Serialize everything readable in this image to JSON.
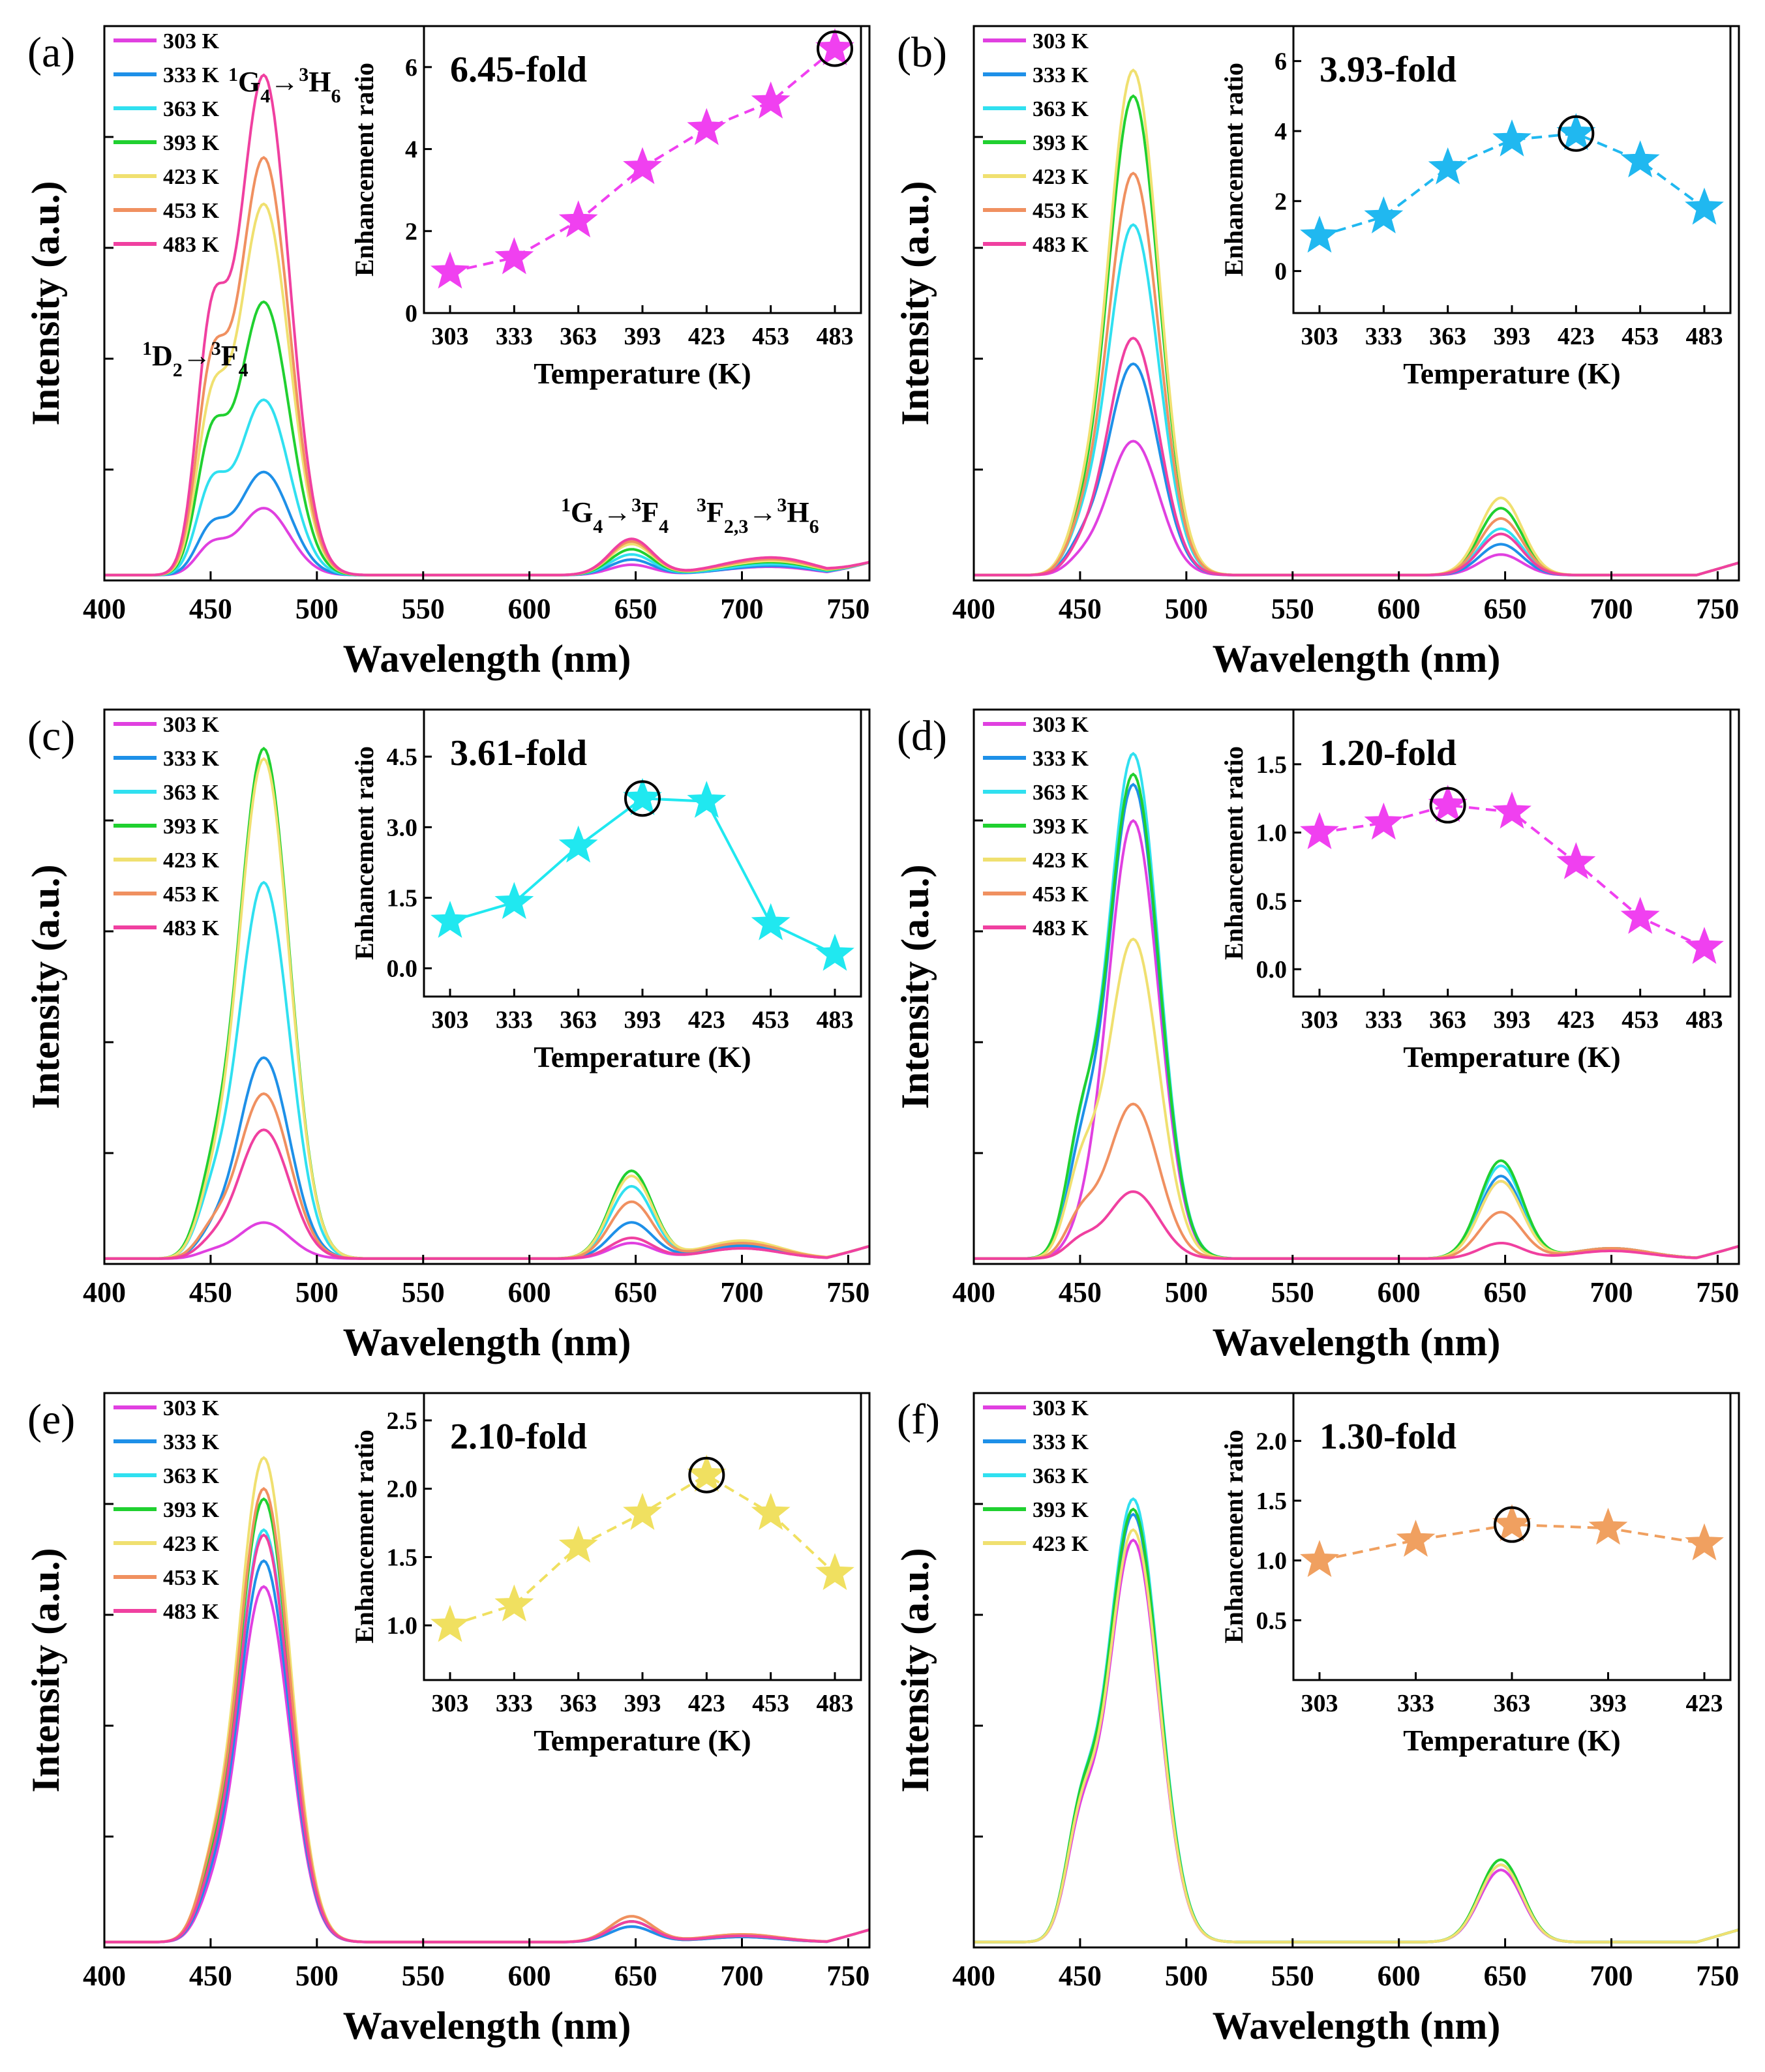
{
  "figure": {
    "x_axis_label": "Wavelength (nm)",
    "y_axis_label": "Intensity (a.u.)",
    "inset_x_label": "Temperature (K)",
    "inset_y_label": "Enhancement ratio"
  },
  "colors": {
    "303 K": "#e040e0",
    "333 K": "#1e90e8",
    "363 K": "#30e0f0",
    "393 K": "#20d030",
    "423 K": "#f0e070",
    "453 K": "#f09060",
    "483 K": "#f040a0"
  },
  "chart_data": [
    {
      "type": "line",
      "panel": "(a)",
      "xlabel": "Wavelength (nm)",
      "ylabel": "Intensity (a.u.)",
      "xlim": [
        400,
        760
      ],
      "xticks": [
        400,
        450,
        500,
        550,
        600,
        650,
        700,
        750
      ],
      "series_names": [
        "303 K",
        "333 K",
        "363 K",
        "393 K",
        "423 K",
        "453 K",
        "483 K"
      ],
      "peaks": {
        "450": [
          0.05,
          0.08,
          0.15,
          0.23,
          0.28,
          0.34,
          0.42
        ],
        "475": [
          0.13,
          0.2,
          0.34,
          0.53,
          0.72,
          0.81,
          0.97
        ],
        "648": [
          0.02,
          0.03,
          0.04,
          0.05,
          0.06,
          0.065,
          0.07
        ],
        "700": [
          0.01,
          0.01,
          0.012,
          0.015,
          0.016,
          0.018,
          0.02
        ],
        "722": [
          0.01,
          0.012,
          0.014,
          0.016,
          0.018,
          0.02,
          0.022
        ]
      },
      "annotations": [
        {
          "text": "1D2→3F4",
          "sup1": "1",
          "main1": "D",
          "sub1": "2",
          "sup2": "3",
          "main2": "F",
          "sub2": "4"
        },
        {
          "text": "1G4→3H6",
          "sup1": "1",
          "main1": "G",
          "sub1": "4",
          "sup2": "3",
          "main2": "H",
          "sub2": "6"
        },
        {
          "text": "1G4→3F4",
          "sup1": "1",
          "main1": "G",
          "sub1": "4",
          "sup2": "3",
          "main2": "F",
          "sub2": "4"
        },
        {
          "text": "3F2,3→3H6",
          "sup1": "3",
          "main1": "F",
          "sub1": "2,3",
          "sup2": "3",
          "main2": "H",
          "sub2": "6"
        }
      ],
      "inset": {
        "type": "line",
        "color": "#f040f0",
        "x": [
          303,
          333,
          363,
          393,
          423,
          453,
          483
        ],
        "values": [
          1.0,
          1.35,
          2.25,
          3.55,
          4.5,
          5.15,
          6.45
        ],
        "ylim": [
          0,
          7
        ],
        "yticks": [
          0,
          2,
          4,
          6
        ],
        "ytick_labels": [
          "0",
          "2",
          "4",
          "6"
        ],
        "highlight_index": 6,
        "fold_label": "6.45-fold",
        "dashed": true
      }
    },
    {
      "type": "line",
      "panel": "(b)",
      "xlabel": "Wavelength (nm)",
      "ylabel": "Intensity (a.u.)",
      "xlim": [
        400,
        760
      ],
      "xticks": [
        400,
        450,
        500,
        550,
        600,
        650,
        700,
        750
      ],
      "series_names": [
        "303 K",
        "333 K",
        "363 K",
        "393 K",
        "423 K",
        "453 K",
        "483 K"
      ],
      "peaks": {
        "450": [
          0.02,
          0.04,
          0.05,
          0.05,
          0.06,
          0.05,
          0.03
        ],
        "475": [
          0.26,
          0.41,
          0.68,
          0.93,
          0.98,
          0.78,
          0.46
        ],
        "648": [
          0.04,
          0.06,
          0.09,
          0.13,
          0.15,
          0.11,
          0.08
        ]
      },
      "inset": {
        "type": "line",
        "color": "#20b8f0",
        "x": [
          303,
          333,
          363,
          393,
          423,
          453,
          483
        ],
        "values": [
          1.0,
          1.55,
          2.95,
          3.75,
          3.93,
          3.15,
          1.8
        ],
        "ylim": [
          -1.2,
          7
        ],
        "yticks": [
          0,
          2,
          4,
          6
        ],
        "ytick_labels": [
          "0",
          "2",
          "4",
          "6"
        ],
        "highlight_index": 4,
        "fold_label": "3.93-fold",
        "dashed": true
      }
    },
    {
      "type": "line",
      "panel": "(c)",
      "xlabel": "Wavelength (nm)",
      "ylabel": "Intensity (a.u.)",
      "xlim": [
        400,
        760
      ],
      "xticks": [
        400,
        450,
        500,
        550,
        600,
        650,
        700,
        750
      ],
      "series_names": [
        "303 K",
        "333 K",
        "363 K",
        "393 K",
        "423 K",
        "453 K",
        "483 K"
      ],
      "peaks": {
        "450": [
          0.01,
          0.03,
          0.08,
          0.1,
          0.08,
          0.04,
          0.02
        ],
        "475": [
          0.07,
          0.39,
          0.73,
          0.99,
          0.97,
          0.32,
          0.25
        ],
        "648": [
          0.03,
          0.07,
          0.14,
          0.17,
          0.16,
          0.11,
          0.04
        ],
        "700": [
          0.02,
          0.025,
          0.03,
          0.03,
          0.035,
          0.03,
          0.02
        ]
      },
      "inset": {
        "type": "line",
        "color": "#20e8f0",
        "x": [
          303,
          333,
          363,
          393,
          423,
          453,
          483
        ],
        "values": [
          1.0,
          1.4,
          2.6,
          3.61,
          3.55,
          0.95,
          0.3
        ],
        "ylim": [
          -0.6,
          5.5
        ],
        "yticks": [
          0,
          1.5,
          3.0,
          4.5
        ],
        "ytick_labels": [
          "0.0",
          "1.5",
          "3.0",
          "4.5"
        ],
        "highlight_index": 3,
        "fold_label": "3.61-fold",
        "dashed": false
      }
    },
    {
      "type": "line",
      "panel": "(d)",
      "xlabel": "Wavelength (nm)",
      "ylabel": "Intensity (a.u.)",
      "xlim": [
        400,
        760
      ],
      "xticks": [
        400,
        450,
        500,
        550,
        600,
        650,
        700,
        750
      ],
      "series_names": [
        "303 K",
        "333 K",
        "363 K",
        "393 K",
        "423 K",
        "453 K",
        "483 K"
      ],
      "peaks": {
        "450": [
          0.02,
          0.15,
          0.18,
          0.19,
          0.14,
          0.07,
          0.03
        ],
        "475": [
          0.85,
          0.92,
          0.98,
          0.94,
          0.62,
          0.3,
          0.13
        ],
        "648": [
          0.15,
          0.16,
          0.18,
          0.19,
          0.15,
          0.09,
          0.03
        ],
        "700": [
          0.02,
          0.02,
          0.02,
          0.02,
          0.02,
          0.02,
          0.015
        ]
      },
      "inset": {
        "type": "line",
        "color": "#f040f0",
        "x": [
          303,
          333,
          363,
          393,
          423,
          453,
          483
        ],
        "values": [
          1.0,
          1.07,
          1.2,
          1.15,
          0.78,
          0.38,
          0.16
        ],
        "ylim": [
          -0.2,
          1.9
        ],
        "yticks": [
          0,
          0.5,
          1.0,
          1.5
        ],
        "ytick_labels": [
          "0.0",
          "0.5",
          "1.0",
          "1.5"
        ],
        "highlight_index": 2,
        "fold_label": "1.20-fold",
        "dashed": true
      }
    },
    {
      "type": "line",
      "panel": "(e)",
      "xlabel": "Wavelength (nm)",
      "ylabel": "Intensity (a.u.)",
      "xlim": [
        400,
        760
      ],
      "xticks": [
        400,
        450,
        500,
        550,
        600,
        650,
        700,
        750
      ],
      "series_names": [
        "303 K",
        "333 K",
        "363 K",
        "393 K",
        "423 K",
        "453 K",
        "483 K"
      ],
      "peaks": {
        "450": [
          0.05,
          0.06,
          0.07,
          0.08,
          0.09,
          0.09,
          0.07
        ],
        "475": [
          0.69,
          0.74,
          0.8,
          0.86,
          0.94,
          0.88,
          0.79
        ],
        "648": [
          0.03,
          0.03,
          0.04,
          0.04,
          0.05,
          0.05,
          0.04
        ],
        "700": [
          0.01,
          0.01,
          0.012,
          0.012,
          0.015,
          0.015,
          0.012
        ]
      },
      "inset": {
        "type": "line",
        "color": "#f0e060",
        "x": [
          303,
          333,
          363,
          393,
          423,
          453,
          483
        ],
        "values": [
          1.0,
          1.15,
          1.58,
          1.82,
          2.1,
          1.82,
          1.38
        ],
        "ylim": [
          0.6,
          2.7
        ],
        "yticks": [
          1.0,
          1.5,
          2.0,
          2.5
        ],
        "ytick_labels": [
          "1.0",
          "1.5",
          "2.0",
          "2.5"
        ],
        "highlight_index": 4,
        "fold_label": "2.10-fold",
        "dashed": true
      }
    },
    {
      "type": "line",
      "panel": "(f)",
      "xlabel": "Wavelength (nm)",
      "ylabel": "Intensity (a.u.)",
      "xlim": [
        400,
        760
      ],
      "xticks": [
        400,
        450,
        500,
        550,
        600,
        650,
        700,
        750
      ],
      "series_names": [
        "303 K",
        "333 K",
        "363 K",
        "393 K",
        "423 K"
      ],
      "peaks": {
        "450": [
          0.18,
          0.19,
          0.2,
          0.2,
          0.19
        ],
        "475": [
          0.78,
          0.83,
          0.86,
          0.84,
          0.8
        ],
        "648": [
          0.14,
          0.15,
          0.15,
          0.16,
          0.15
        ]
      },
      "inset": {
        "type": "line",
        "color": "#f0a060",
        "x": [
          303,
          333,
          363,
          393,
          423
        ],
        "values": [
          1.0,
          1.17,
          1.3,
          1.27,
          1.14
        ],
        "ylim": [
          0.0,
          2.4
        ],
        "yticks": [
          0.5,
          1.0,
          1.5,
          2.0
        ],
        "ytick_labels": [
          "0.5",
          "1.0",
          "1.5",
          "2.0"
        ],
        "highlight_index": 2,
        "fold_label": "1.30-fold",
        "dashed": true
      }
    }
  ]
}
